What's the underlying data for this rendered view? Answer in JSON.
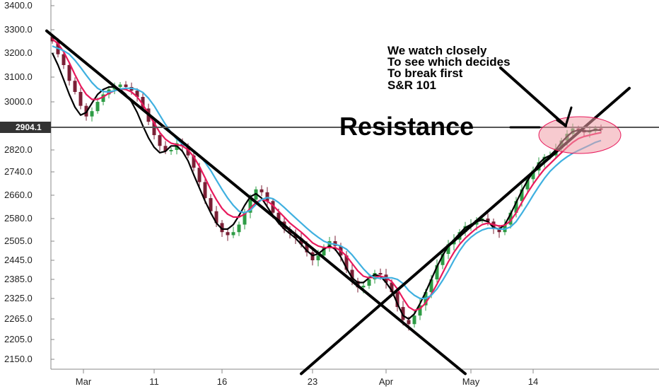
{
  "chart_data": {
    "type": "candlestick",
    "ylim": [
      2120,
      3440
    ],
    "y_ticks": [
      {
        "value": 3400,
        "label": "3400.0"
      },
      {
        "value": 3300,
        "label": "3300.0"
      },
      {
        "value": 3200,
        "label": "3200.0"
      },
      {
        "value": 3100,
        "label": "3100.0"
      },
      {
        "value": 3000,
        "label": "3000.0"
      },
      {
        "value": 2820,
        "label": "2820.0"
      },
      {
        "value": 2740,
        "label": "2740.0"
      },
      {
        "value": 2660,
        "label": "2660.0"
      },
      {
        "value": 2580,
        "label": "2580.0"
      },
      {
        "value": 2505,
        "label": "2505.0"
      },
      {
        "value": 2445,
        "label": "2445.0"
      },
      {
        "value": 2385,
        "label": "2385.0"
      },
      {
        "value": 2325,
        "label": "2325.0"
      },
      {
        "value": 2265,
        "label": "2265.0"
      },
      {
        "value": 2205,
        "label": "2205.0"
      },
      {
        "value": 2150,
        "label": "2150.0"
      }
    ],
    "x_ticks": [
      {
        "bar": 5.5,
        "label": "Mar"
      },
      {
        "bar": 18,
        "label": "11"
      },
      {
        "bar": 30,
        "label": "16"
      },
      {
        "bar": 46,
        "label": "23"
      },
      {
        "bar": 59,
        "label": "Apr"
      },
      {
        "bar": 74,
        "label": "May"
      },
      {
        "bar": 85,
        "label": "14"
      }
    ],
    "current_price": {
      "value": 2904.1,
      "label": "2904.1"
    },
    "close": [
      3250,
      3195,
      3150,
      3085,
      3040,
      2985,
      2945,
      2965,
      3000,
      3030,
      3050,
      3060,
      3070,
      3060,
      3045,
      3020,
      2975,
      2925,
      2875,
      2835,
      2815,
      2820,
      2845,
      2835,
      2800,
      2755,
      2705,
      2650,
      2605,
      2565,
      2535,
      2525,
      2535,
      2560,
      2600,
      2645,
      2680,
      2670,
      2640,
      2600,
      2570,
      2545,
      2530,
      2515,
      2495,
      2470,
      2445,
      2460,
      2485,
      2505,
      2490,
      2460,
      2415,
      2380,
      2360,
      2365,
      2385,
      2405,
      2400,
      2375,
      2345,
      2300,
      2262,
      2250,
      2275,
      2305,
      2345,
      2385,
      2430,
      2465,
      2495,
      2510,
      2535,
      2555,
      2560,
      2575,
      2580,
      2570,
      2545,
      2535,
      2560,
      2600,
      2640,
      2680,
      2715,
      2745,
      2775,
      2795,
      2800,
      2825,
      2855,
      2880,
      2900,
      2895,
      2885,
      2890,
      2900,
      2895
    ],
    "series": [
      {
        "color": "#000000",
        "values": [
          3200,
          3150,
          3090,
          3030,
          2980,
          2950,
          2960,
          2995,
          3030,
          3050,
          3060,
          3060,
          3050,
          3030,
          3000,
          2960,
          2910,
          2865,
          2830,
          2810,
          2815,
          2835,
          2835,
          2815,
          2780,
          2730,
          2685,
          2640,
          2600,
          2565,
          2545,
          2545,
          2560,
          2590,
          2625,
          2655,
          2665,
          2650,
          2620,
          2590,
          2565,
          2545,
          2530,
          2515,
          2495,
          2475,
          2460,
          2465,
          2480,
          2490,
          2480,
          2455,
          2420,
          2390,
          2375,
          2375,
          2390,
          2400,
          2395,
          2375,
          2350,
          2310,
          2275,
          2265,
          2280,
          2310,
          2345,
          2385,
          2425,
          2460,
          2490,
          2510,
          2530,
          2550,
          2560,
          2570,
          2575,
          2570,
          2550,
          2545,
          2560,
          2595,
          2635,
          2675,
          2710,
          2740,
          2770,
          2790,
          2800,
          2820,
          2848,
          2870,
          2888,
          2893,
          2890,
          2890,
          2895,
          2893
        ]
      },
      {
        "color": "#e8195c",
        "values": [
          3260,
          3240,
          3205,
          3160,
          3110,
          3065,
          3030,
          3010,
          3010,
          3020,
          3035,
          3045,
          3052,
          3050,
          3040,
          3020,
          2990,
          2955,
          2920,
          2885,
          2860,
          2845,
          2840,
          2835,
          2820,
          2795,
          2760,
          2720,
          2680,
          2645,
          2615,
          2595,
          2585,
          2585,
          2595,
          2615,
          2635,
          2645,
          2640,
          2625,
          2605,
          2585,
          2565,
          2550,
          2535,
          2518,
          2500,
          2490,
          2485,
          2485,
          2485,
          2475,
          2458,
          2435,
          2412,
          2395,
          2390,
          2392,
          2395,
          2390,
          2378,
          2355,
          2325,
          2300,
          2290,
          2295,
          2312,
          2338,
          2370,
          2405,
          2440,
          2470,
          2495,
          2515,
          2532,
          2548,
          2560,
          2565,
          2560,
          2555,
          2558,
          2572,
          2600,
          2635,
          2668,
          2698,
          2725,
          2750,
          2770,
          2790,
          2810,
          2830,
          2848,
          2862,
          2870,
          2875,
          2880,
          2884
        ]
      },
      {
        "color": "#3fb0e0",
        "values": [
          3230,
          3220,
          3210,
          3195,
          3170,
          3140,
          3108,
          3078,
          3055,
          3042,
          3040,
          3045,
          3052,
          3055,
          3055,
          3050,
          3038,
          3015,
          2985,
          2950,
          2915,
          2885,
          2860,
          2842,
          2830,
          2818,
          2800,
          2775,
          2745,
          2712,
          2680,
          2650,
          2625,
          2605,
          2600,
          2608,
          2628,
          2645,
          2652,
          2648,
          2635,
          2618,
          2600,
          2582,
          2565,
          2548,
          2532,
          2518,
          2505,
          2498,
          2495,
          2490,
          2480,
          2462,
          2440,
          2418,
          2400,
          2390,
          2388,
          2390,
          2390,
          2385,
          2372,
          2350,
          2335,
          2325,
          2325,
          2335,
          2355,
          2382,
          2412,
          2445,
          2475,
          2500,
          2518,
          2532,
          2542,
          2548,
          2548,
          2545,
          2545,
          2552,
          2570,
          2598,
          2628,
          2660,
          2690,
          2718,
          2742,
          2762,
          2780,
          2795,
          2808,
          2818,
          2828,
          2838,
          2848,
          2855
        ]
      }
    ],
    "trendlines": [
      {
        "from": {
          "bar": -1,
          "value": 3295
        },
        "to": {
          "bar": 73,
          "value": 2110
        },
        "color": "#000000"
      },
      {
        "from": {
          "bar": 44,
          "value": 2110
        },
        "to": {
          "bar": 102,
          "value": 3055
        },
        "color": "#000000"
      },
      {
        "from": {
          "bar": -1,
          "value": 2904.1
        },
        "to": {
          "bar": 102,
          "value": 2904.1
        },
        "color": "#555555"
      }
    ],
    "annotations": {
      "note_lines": [
        "We watch closely",
        "To see which decides",
        "To break first",
        "S&R 101"
      ],
      "resistance_label": "Resistance"
    }
  }
}
